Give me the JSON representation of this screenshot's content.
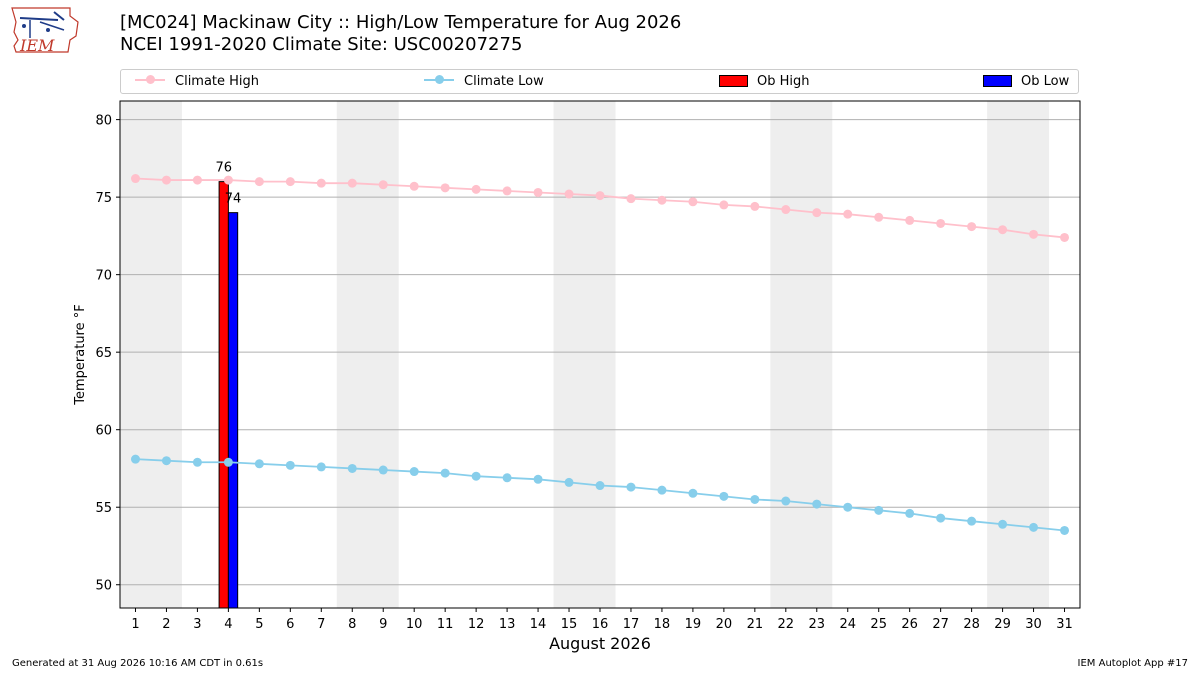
{
  "header": {
    "title_line1": "[MC024] Mackinaw City  :: High/Low Temperature for Aug 2026",
    "title_line2": "NCEI 1991-2020 Climate Site: USC00207275",
    "logo_text": "IEM"
  },
  "legend": {
    "climate_high": "Climate High",
    "climate_low": "Climate Low",
    "ob_high": "Ob High",
    "ob_low": "Ob Low"
  },
  "footer": {
    "left": "Generated at 31 Aug 2026 10:16 AM CDT in 0.61s",
    "right": "IEM Autoplot App #17"
  },
  "colors": {
    "climate_high": "#ffc0cb",
    "climate_low": "#87ceeb",
    "ob_high": "#ff0000",
    "ob_low": "#0000ff",
    "weekend_band": "#eeeeee",
    "grid": "#b0b0b0"
  },
  "chart_data": {
    "type": "line",
    "xlabel": "August 2026",
    "ylabel": "Temperature °F",
    "xlim": [
      0.5,
      31.5
    ],
    "ylim": [
      48.5,
      81.2
    ],
    "yticks": [
      50,
      55,
      60,
      65,
      70,
      75,
      80
    ],
    "x": [
      1,
      2,
      3,
      4,
      5,
      6,
      7,
      8,
      9,
      10,
      11,
      12,
      13,
      14,
      15,
      16,
      17,
      18,
      19,
      20,
      21,
      22,
      23,
      24,
      25,
      26,
      27,
      28,
      29,
      30,
      31
    ],
    "weekend_bands": [
      [
        1,
        2
      ],
      [
        8,
        9
      ],
      [
        15,
        16
      ],
      [
        22,
        23
      ],
      [
        29,
        30
      ]
    ],
    "grid": "horizontal",
    "legend_position": "top",
    "series": [
      {
        "name": "Climate High",
        "type": "line",
        "values": [
          76.2,
          76.1,
          76.1,
          76.1,
          76.0,
          76.0,
          75.9,
          75.9,
          75.8,
          75.7,
          75.6,
          75.5,
          75.4,
          75.3,
          75.2,
          75.1,
          74.9,
          74.8,
          74.7,
          74.5,
          74.4,
          74.2,
          74.0,
          73.9,
          73.7,
          73.5,
          73.3,
          73.1,
          72.9,
          72.6,
          72.4
        ]
      },
      {
        "name": "Climate Low",
        "type": "line",
        "values": [
          58.1,
          58.0,
          57.9,
          57.9,
          57.8,
          57.7,
          57.6,
          57.5,
          57.4,
          57.3,
          57.2,
          57.0,
          56.9,
          56.8,
          56.6,
          56.4,
          56.3,
          56.1,
          55.9,
          55.7,
          55.5,
          55.4,
          55.2,
          55.0,
          54.8,
          54.6,
          54.3,
          54.1,
          53.9,
          53.7,
          53.5
        ]
      },
      {
        "name": "Ob High",
        "type": "bar",
        "points": [
          {
            "x": 4,
            "y": 76,
            "label": "76"
          }
        ]
      },
      {
        "name": "Ob Low",
        "type": "bar",
        "points": [
          {
            "x": 4,
            "y": 74,
            "label": "74"
          }
        ]
      }
    ]
  }
}
